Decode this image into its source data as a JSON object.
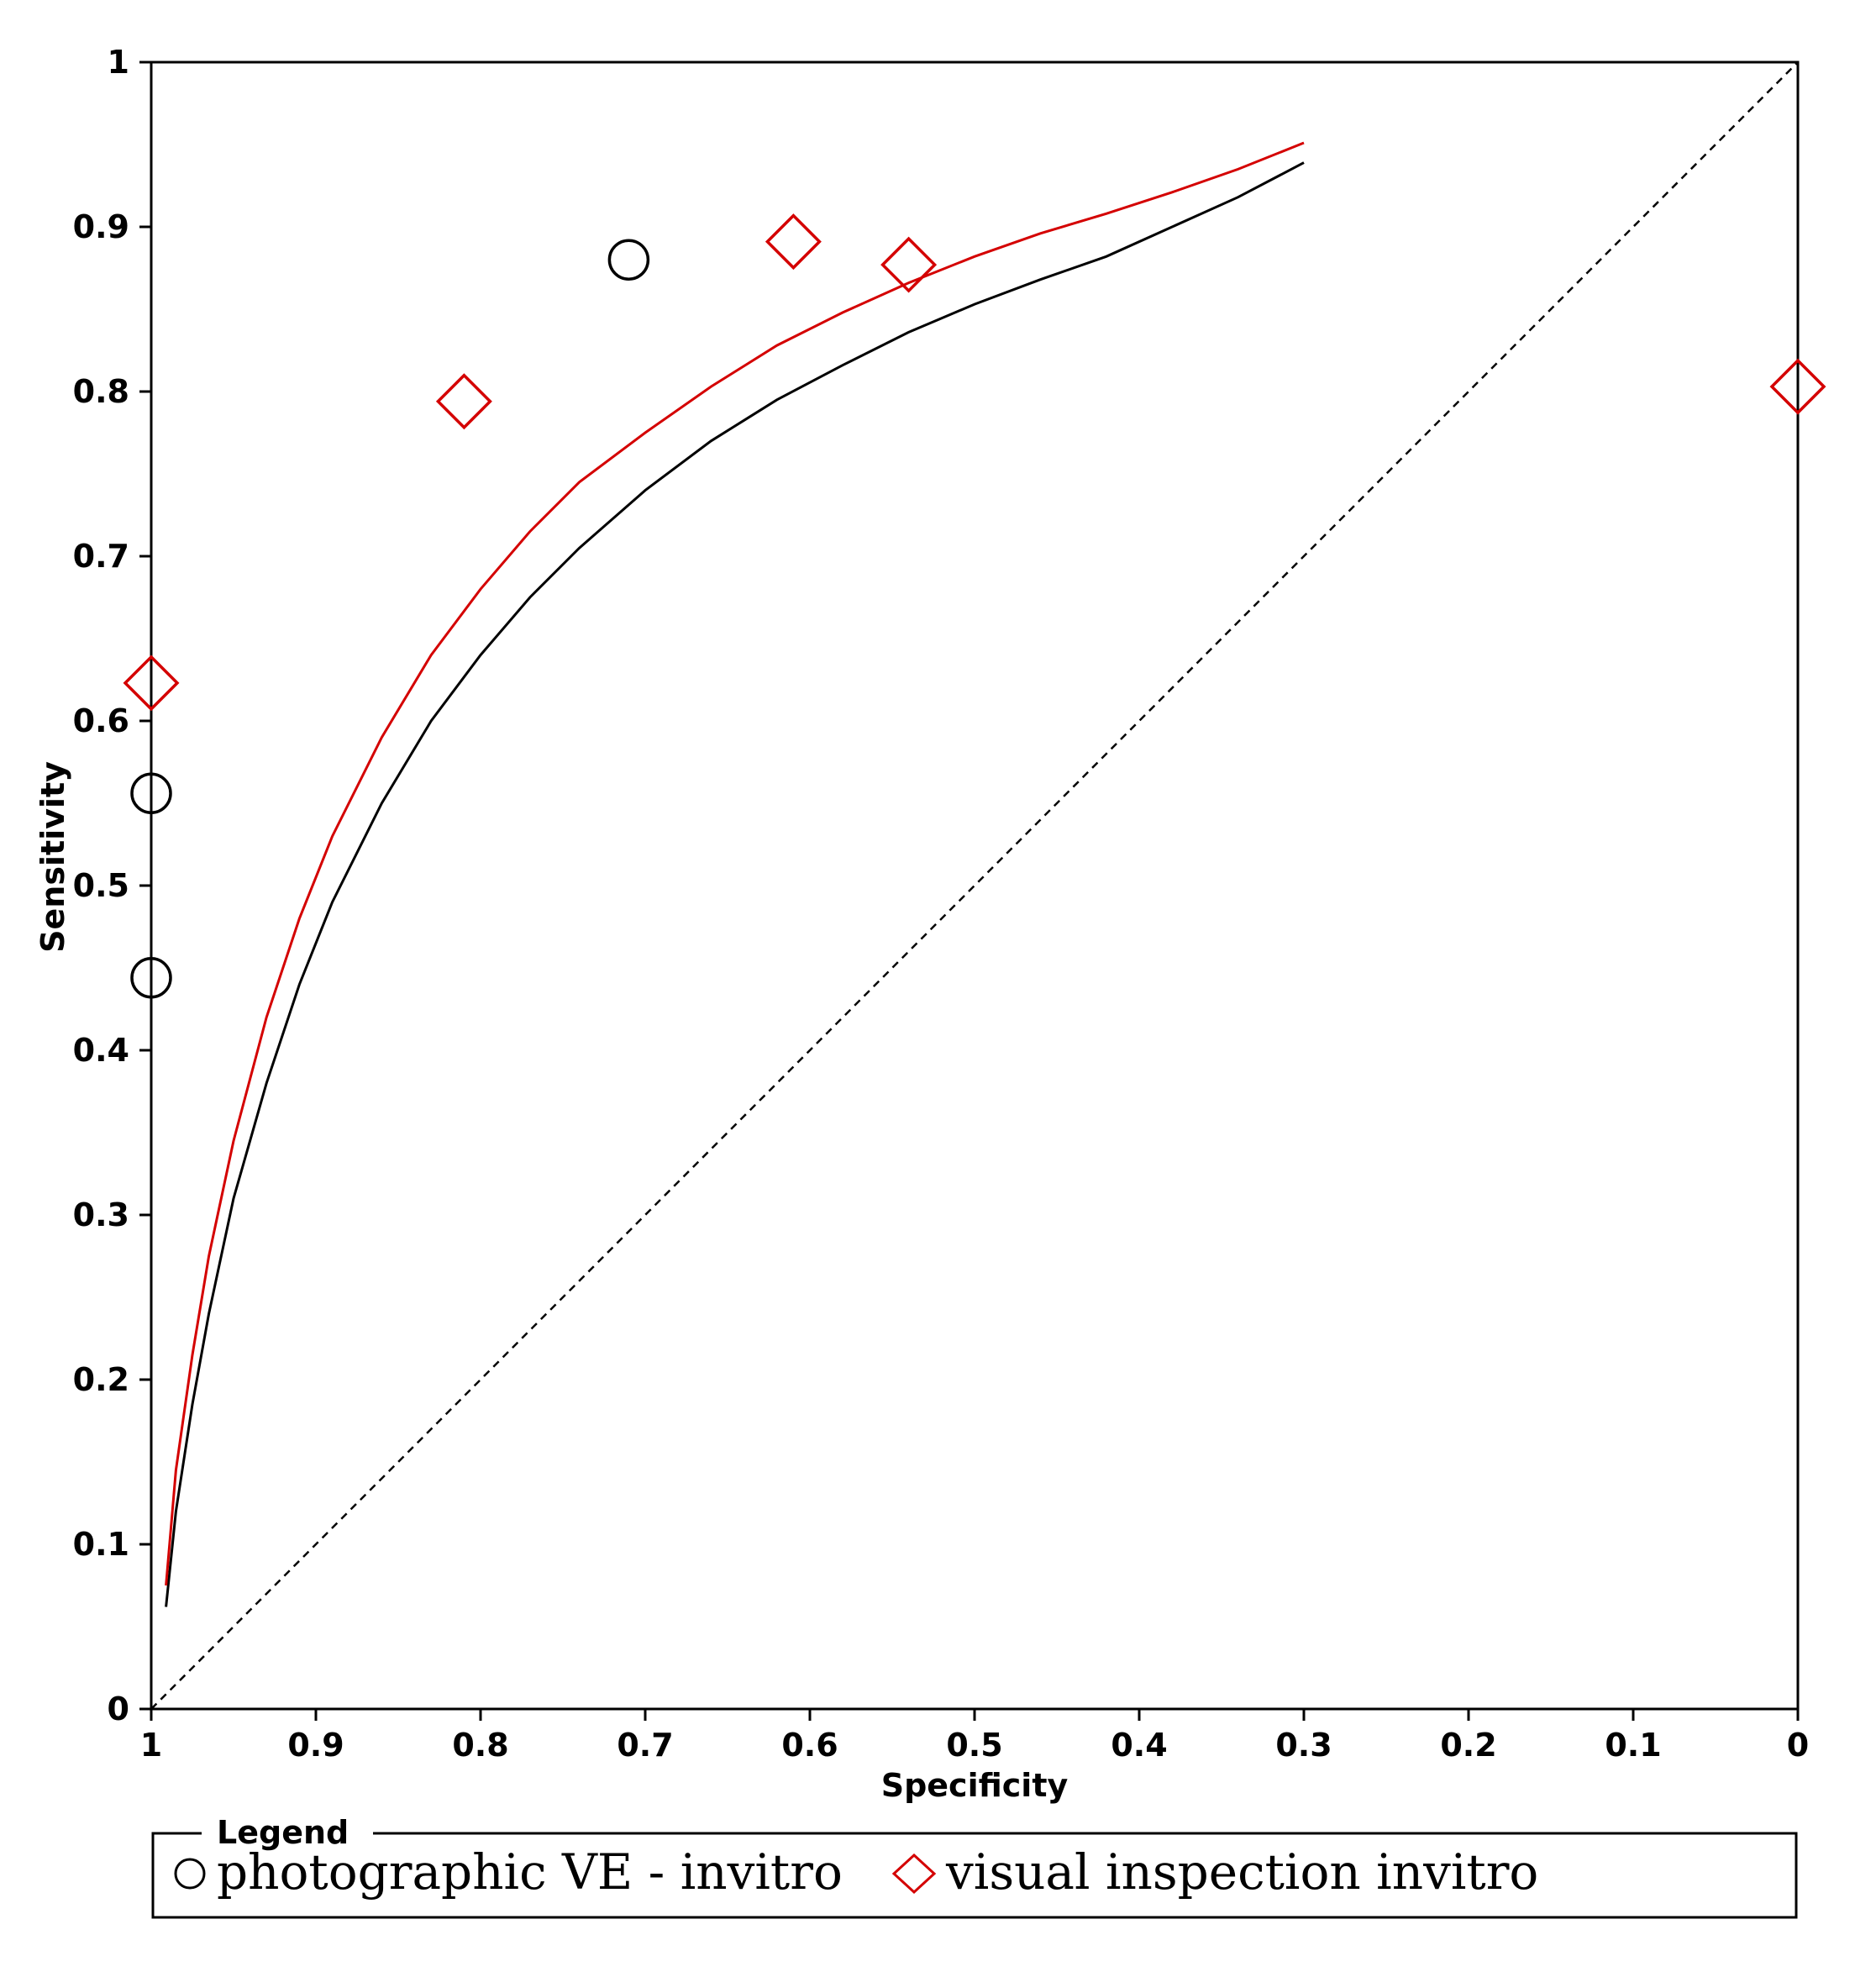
{
  "chart_data": {
    "type": "scatter",
    "title": "",
    "xlabel": "Specificity",
    "ylabel": "Sensitivity",
    "xlim": [
      1,
      0
    ],
    "ylim": [
      0,
      1
    ],
    "x_ticks": [
      1,
      0.9,
      0.8,
      0.7,
      0.6,
      0.5,
      0.4,
      0.3,
      0.2,
      0.1,
      0
    ],
    "x_tick_labels": [
      "1",
      "0.9",
      "0.8",
      "0.7",
      "0.6",
      "0.5",
      "0.4",
      "0.3",
      "0.2",
      "0.1",
      "0"
    ],
    "y_ticks": [
      0,
      0.1,
      0.2,
      0.3,
      0.4,
      0.5,
      0.6,
      0.7,
      0.8,
      0.9,
      1
    ],
    "y_tick_labels": [
      "0",
      "0.1",
      "0.2",
      "0.3",
      "0.4",
      "0.5",
      "0.6",
      "0.7",
      "0.8",
      "0.9",
      "1"
    ],
    "grid": false,
    "legend": {
      "title": "Legend",
      "position": "bottom",
      "entries": [
        {
          "label": "photographic VE - invitro",
          "marker": "circle",
          "color": "#000000"
        },
        {
          "label": "visual inspection invitro",
          "marker": "diamond",
          "color": "#d40000"
        }
      ]
    },
    "reference_line": {
      "name": "chance-diagonal",
      "style": "dashed",
      "color": "#000000",
      "points": [
        [
          1,
          0
        ],
        [
          0,
          1
        ]
      ]
    },
    "series": [
      {
        "name": "photographic VE - invitro",
        "marker": "circle",
        "color": "#000000",
        "points": [
          {
            "specificity": 1.0,
            "sensitivity": 0.556
          },
          {
            "specificity": 1.0,
            "sensitivity": 0.444
          },
          {
            "specificity": 0.71,
            "sensitivity": 0.88
          }
        ]
      },
      {
        "name": "visual inspection invitro",
        "marker": "diamond",
        "color": "#d40000",
        "points": [
          {
            "specificity": 1.0,
            "sensitivity": 0.623
          },
          {
            "specificity": 0.81,
            "sensitivity": 0.794
          },
          {
            "specificity": 0.61,
            "sensitivity": 0.891
          },
          {
            "specificity": 0.54,
            "sensitivity": 0.877
          },
          {
            "specificity": 0.0,
            "sensitivity": 0.803
          }
        ]
      }
    ],
    "curves": [
      {
        "name": "photographic VE - invitro SROC",
        "color": "#000000",
        "points": [
          [
            0.991,
            0.062
          ],
          [
            0.985,
            0.12
          ],
          [
            0.975,
            0.185
          ],
          [
            0.965,
            0.24
          ],
          [
            0.95,
            0.31
          ],
          [
            0.93,
            0.38
          ],
          [
            0.91,
            0.44
          ],
          [
            0.89,
            0.49
          ],
          [
            0.86,
            0.55
          ],
          [
            0.83,
            0.6
          ],
          [
            0.8,
            0.64
          ],
          [
            0.77,
            0.675
          ],
          [
            0.74,
            0.705
          ],
          [
            0.7,
            0.74
          ],
          [
            0.66,
            0.77
          ],
          [
            0.62,
            0.795
          ],
          [
            0.58,
            0.816
          ],
          [
            0.54,
            0.836
          ],
          [
            0.5,
            0.853
          ],
          [
            0.46,
            0.868
          ],
          [
            0.42,
            0.882
          ],
          [
            0.38,
            0.9
          ],
          [
            0.34,
            0.918
          ],
          [
            0.3,
            0.939
          ]
        ]
      },
      {
        "name": "visual inspection invitro SROC",
        "color": "#d40000",
        "points": [
          [
            0.991,
            0.075
          ],
          [
            0.985,
            0.145
          ],
          [
            0.975,
            0.215
          ],
          [
            0.965,
            0.275
          ],
          [
            0.95,
            0.345
          ],
          [
            0.93,
            0.42
          ],
          [
            0.91,
            0.48
          ],
          [
            0.89,
            0.53
          ],
          [
            0.86,
            0.59
          ],
          [
            0.83,
            0.64
          ],
          [
            0.8,
            0.68
          ],
          [
            0.77,
            0.715
          ],
          [
            0.74,
            0.745
          ],
          [
            0.7,
            0.775
          ],
          [
            0.66,
            0.803
          ],
          [
            0.62,
            0.828
          ],
          [
            0.58,
            0.848
          ],
          [
            0.54,
            0.866
          ],
          [
            0.5,
            0.882
          ],
          [
            0.46,
            0.896
          ],
          [
            0.42,
            0.908
          ],
          [
            0.38,
            0.921
          ],
          [
            0.34,
            0.935
          ],
          [
            0.3,
            0.951
          ]
        ]
      }
    ]
  }
}
